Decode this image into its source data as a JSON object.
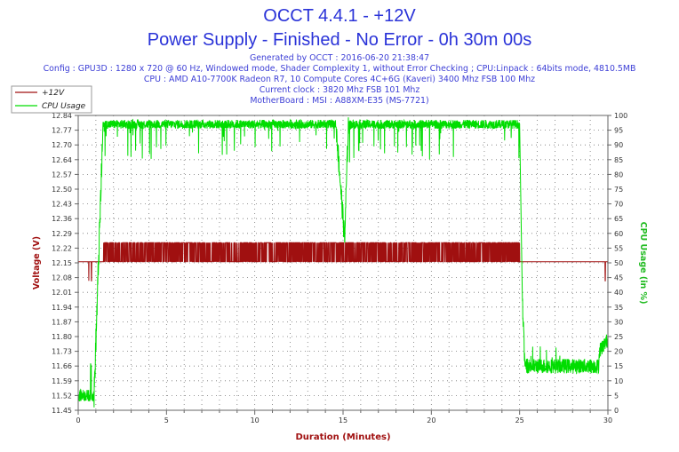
{
  "chart_data": {
    "type": "line",
    "title": "OCCT 4.4.1 - +12V",
    "subtitle": "Power Supply - Finished - No Error - 0h 30m 00s",
    "info_lines": [
      "Generated by OCCT : 2016-06-20 21:38:47",
      "Config : GPU3D : 1280 x 720 @ 60 Hz, Windowed mode, Shader Complexity 1, without Error Checking ; CPU:Linpack : 64bits mode, 4810.5MB",
      "CPU : AMD A10-7700K Radeon R7, 10 Compute Cores 4C+6G (Kaveri) 3400 Mhz FSB 100 Mhz",
      "Current clock : 3820 Mhz FSB 101 Mhz",
      "MotherBoard : MSI : A88XM-E35 (MS-7721)"
    ],
    "xlabel": "Duration (Minutes)",
    "ylabel_left": "Voltage (V)",
    "ylabel_right": "CPU Usage (in %)",
    "xlim": [
      0,
      30
    ],
    "ylim_left": [
      11.45,
      12.84
    ],
    "ylim_right": [
      0,
      100
    ],
    "x_ticks": [
      "0",
      "5",
      "10",
      "15",
      "20",
      "25",
      "30"
    ],
    "y_left_ticks": [
      "12.84",
      "12.77",
      "12.70",
      "12.64",
      "12.57",
      "12.50",
      "12.43",
      "12.36",
      "12.29",
      "12.22",
      "12.15",
      "12.08",
      "12.01",
      "11.94",
      "11.87",
      "11.80",
      "11.73",
      "11.66",
      "11.59",
      "11.52",
      "11.45"
    ],
    "y_right_ticks": [
      "100",
      "95",
      "90",
      "85",
      "80",
      "75",
      "70",
      "65",
      "60",
      "55",
      "50",
      "45",
      "40",
      "35",
      "30",
      "25",
      "20",
      "15",
      "10",
      "5",
      "0"
    ],
    "grid": true,
    "legend_position": "top-left",
    "series": [
      {
        "name": "+12V",
        "axis": "left",
        "color": "#a01010",
        "baseline": 12.15,
        "high_value": 12.24,
        "low_value": 12.06,
        "segments": [
          {
            "from": 0.0,
            "to": 1.4,
            "state": "baseline",
            "dips_at": [
              0.6,
              0.75
            ]
          },
          {
            "from": 1.4,
            "to": 25.0,
            "state": "toggling 12.15/12.24"
          },
          {
            "from": 25.0,
            "to": 29.8,
            "state": "baseline"
          },
          {
            "from": 29.8,
            "to": 30.0,
            "state": "dip",
            "dips_at": [
              29.85
            ]
          }
        ]
      },
      {
        "name": "CPU Usage",
        "axis": "right",
        "color": "#00dd00",
        "segments": [
          {
            "from": 0.0,
            "to": 0.9,
            "level": 5
          },
          {
            "from": 0.9,
            "to": 1.4,
            "level": "ramp 5 to 97"
          },
          {
            "from": 1.4,
            "to": 14.6,
            "level": 97
          },
          {
            "from": 14.6,
            "to": 15.1,
            "level": "drop to 57"
          },
          {
            "from": 15.1,
            "to": 25.0,
            "level": 97
          },
          {
            "from": 25.0,
            "to": 25.3,
            "level": "drop to 40 then 15"
          },
          {
            "from": 25.3,
            "to": 29.5,
            "level": 15
          },
          {
            "from": 29.5,
            "to": 30.0,
            "level": 22
          }
        ]
      }
    ]
  }
}
